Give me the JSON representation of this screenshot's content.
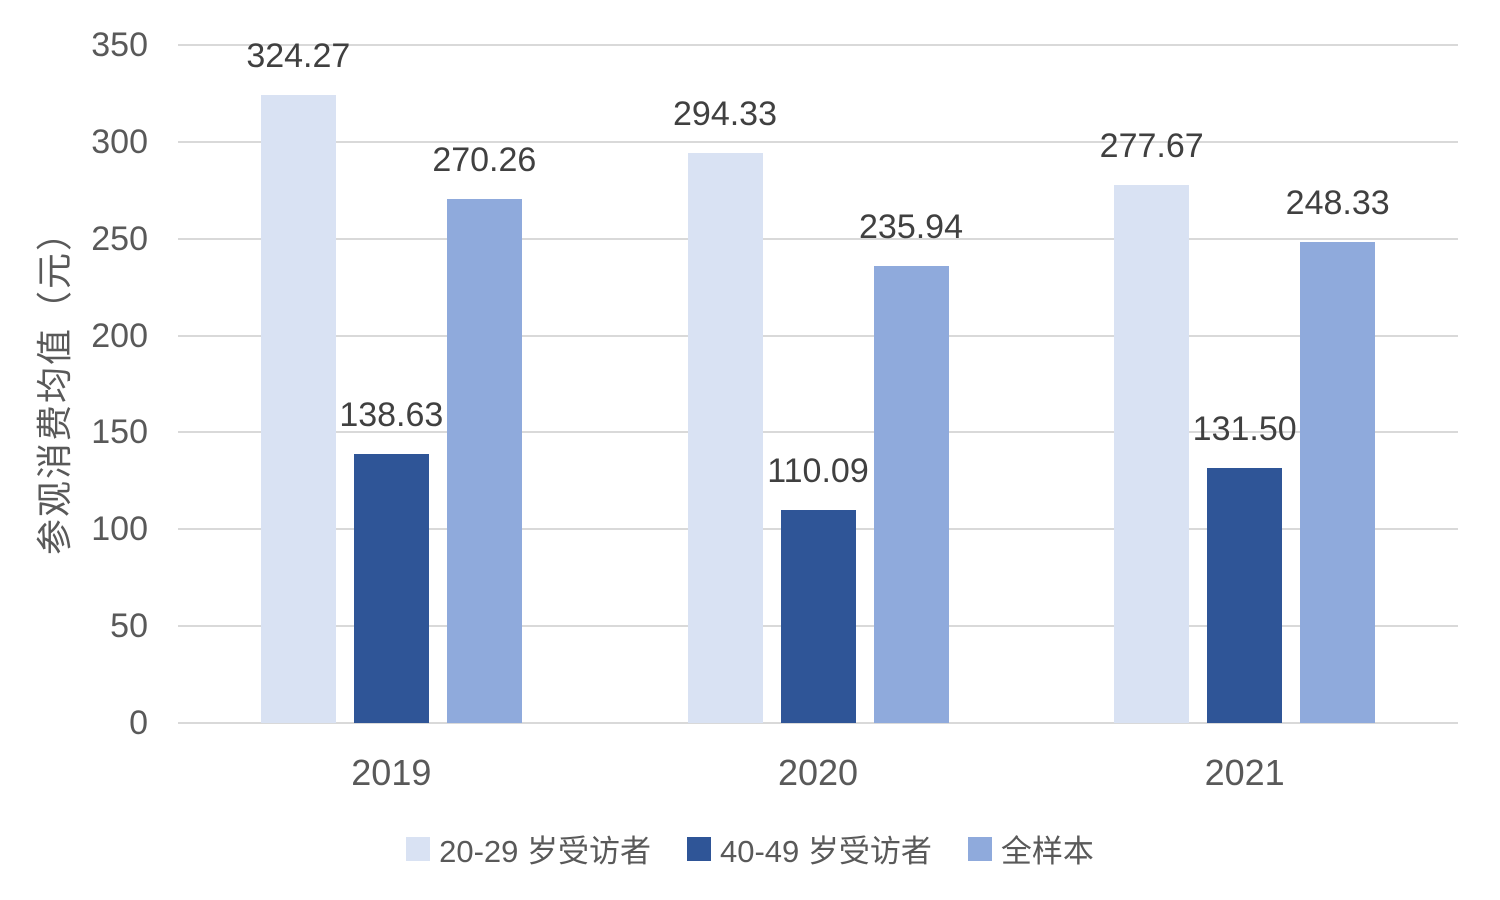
{
  "chart_data": {
    "type": "bar",
    "title": "",
    "categories": [
      "2019",
      "2020",
      "2021"
    ],
    "series": [
      {
        "name": "20-29 岁受访者",
        "color": "#d9e2f3",
        "values": [
          324.27,
          294.33,
          277.67
        ],
        "labels": [
          "324.27",
          "294.33",
          "277.67"
        ]
      },
      {
        "name": "40-49 岁受访者",
        "color": "#2f5597",
        "values": [
          138.63,
          110.09,
          131.5
        ],
        "labels": [
          "138.63",
          "110.09",
          "131.50"
        ]
      },
      {
        "name": "全样本",
        "color": "#8faadc",
        "values": [
          270.26,
          235.94,
          248.33
        ],
        "labels": [
          "270.26",
          "235.94",
          "248.33"
        ]
      }
    ],
    "xlabel": "",
    "ylabel": "参观消费均值（元）",
    "ylim": [
      0,
      350
    ],
    "ytick_step": 50,
    "yticks": [
      "0",
      "50",
      "100",
      "150",
      "200",
      "250",
      "300",
      "350"
    ],
    "grid": true,
    "legend_position": "bottom"
  },
  "colors": {
    "background": "#ffffff",
    "gridline": "#d9d9d9",
    "axis_line": "#d9d9d9",
    "tick_text": "#595959",
    "data_label_text": "#404040"
  }
}
